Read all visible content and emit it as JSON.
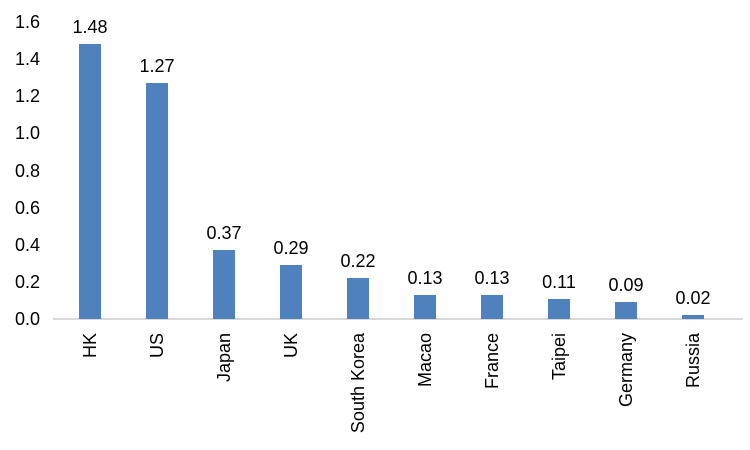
{
  "chart_data": {
    "type": "bar",
    "title": "",
    "xlabel": "",
    "ylabel": "",
    "categories": [
      "HK",
      "US",
      "Japan",
      "UK",
      "South Korea",
      "Macao",
      "France",
      "Taipei",
      "Germany",
      "Russia"
    ],
    "values": [
      1.48,
      1.27,
      0.37,
      0.29,
      0.22,
      0.13,
      0.13,
      0.11,
      0.09,
      0.02
    ],
    "data_labels": [
      "1.48",
      "1.27",
      "0.37",
      "0.29",
      "0.22",
      "0.13",
      "0.13",
      "0.11",
      "0.09",
      "0.02"
    ],
    "yticks": [
      "0.0",
      "0.2",
      "0.4",
      "0.6",
      "0.8",
      "1.0",
      "1.2",
      "1.4",
      "1.6"
    ],
    "ylim": [
      0,
      1.6
    ],
    "grid": false,
    "legend": "none",
    "data_label_position": "above",
    "x_label_rotation_deg": -90,
    "bar_color": "#4F81BD",
    "axis_line_color": "#D9D9D9",
    "text_color": "#000000",
    "background_color": "#FFFFFF"
  }
}
